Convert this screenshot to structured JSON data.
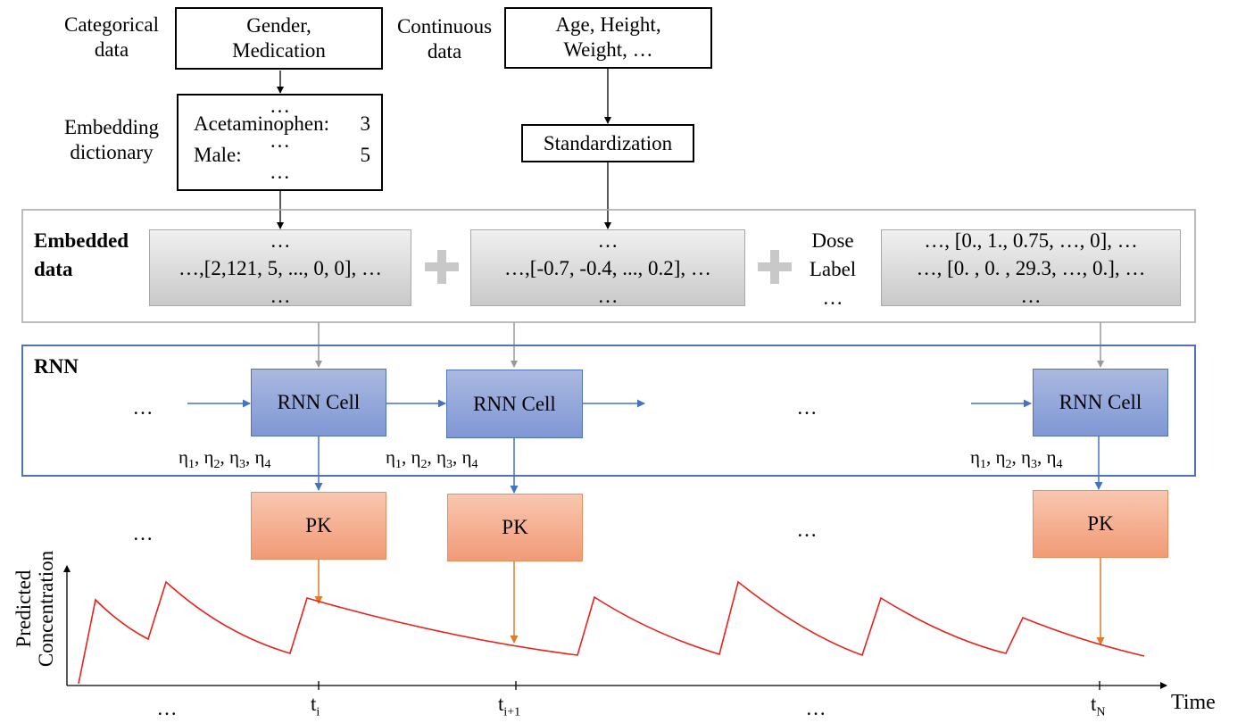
{
  "categorical": {
    "label_line1": "Categorical",
    "label_line2": "data",
    "box_line1": "Gender,",
    "box_line2": "Medication"
  },
  "continuous": {
    "label_line1": "Continuous",
    "label_line2": "data",
    "box_line1": "Age, Height,",
    "box_line2": "Weight, …"
  },
  "embedding": {
    "label_line1": "Embedding",
    "label_line2": "dictionary",
    "dots": "…",
    "row1_key": "Acetaminophen:",
    "row1_val": "3",
    "row2_key": "Male:",
    "row2_val": "5"
  },
  "standardization": "Standardization",
  "embedded": {
    "label_line1": "Embedded",
    "label_line2": "data",
    "dots": "…",
    "cat_row": "…,[2,121, 5, ..., 0, 0], …",
    "cont_row": "…,[-0.7, -0.4, ..., 0.2], …",
    "dose_label_line1": "Dose",
    "dose_label_line2": "Label",
    "dose_row1": "…, [0., 1., 0.75, …, 0], …",
    "dose_row2": "…, [0. ,  0. , 29.3, …, 0.], …"
  },
  "rnn": {
    "label": "RNN",
    "cell_label": "RNN Cell",
    "dots": "…"
  },
  "eta": {
    "symbol": "η",
    "sep": ", ",
    "subs": [
      "1",
      "2",
      "3",
      "4"
    ]
  },
  "pk": {
    "label": "PK",
    "dots": "…"
  },
  "plot": {
    "ylabel_line1": "Predicted",
    "ylabel_line2": "Concentration",
    "xlabel": "Time",
    "dots": "…",
    "ticks": [
      {
        "base": "t",
        "sub": "i"
      },
      {
        "base": "t",
        "sub": "i+1"
      },
      {
        "base": "t",
        "sub": "N"
      }
    ]
  },
  "colors": {
    "rnn_border": "#4f72b8",
    "pk_border": "#ec8c5c",
    "curve": "#e8221c",
    "arrow_orange": "#e07b2a",
    "arrow_gray": "#999999"
  }
}
